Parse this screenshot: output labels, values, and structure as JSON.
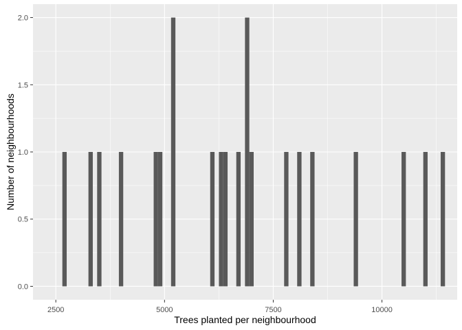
{
  "chart_data": {
    "type": "bar",
    "style": "histogram",
    "xlabel": "Trees planted per neighbourhood",
    "ylabel": "Number of neighbourhoods",
    "xlim": [
      1975,
      11730
    ],
    "ylim": [
      -0.1,
      2.1
    ],
    "bin_width": 100,
    "x_ticks": [
      2500,
      5000,
      7500,
      10000
    ],
    "x_tick_labels": [
      "2500",
      "5000",
      "7500",
      "10000"
    ],
    "y_ticks": [
      0,
      0.5,
      1,
      1.5,
      2
    ],
    "y_tick_labels": [
      "0.0",
      "0.5",
      "1.0",
      "1.5",
      "2.0"
    ],
    "grid": true,
    "legend": "none",
    "bars": [
      {
        "x": 2700,
        "value": 1
      },
      {
        "x": 3300,
        "value": 1
      },
      {
        "x": 3500,
        "value": 1
      },
      {
        "x": 4000,
        "value": 1
      },
      {
        "x": 4800,
        "value": 1
      },
      {
        "x": 4900,
        "value": 1
      },
      {
        "x": 5200,
        "value": 2
      },
      {
        "x": 6100,
        "value": 1
      },
      {
        "x": 6300,
        "value": 1
      },
      {
        "x": 6400,
        "value": 1
      },
      {
        "x": 6700,
        "value": 1
      },
      {
        "x": 6900,
        "value": 2
      },
      {
        "x": 7000,
        "value": 1
      },
      {
        "x": 7800,
        "value": 1
      },
      {
        "x": 8100,
        "value": 1
      },
      {
        "x": 8400,
        "value": 1
      },
      {
        "x": 9400,
        "value": 1
      },
      {
        "x": 10500,
        "value": 1
      },
      {
        "x": 11000,
        "value": 1
      },
      {
        "x": 11400,
        "value": 1
      }
    ],
    "colors": {
      "panel_background": "#ebebeb",
      "grid_major": "#ffffff",
      "bar_fill": "#595959",
      "tick_color": "#333333"
    }
  }
}
